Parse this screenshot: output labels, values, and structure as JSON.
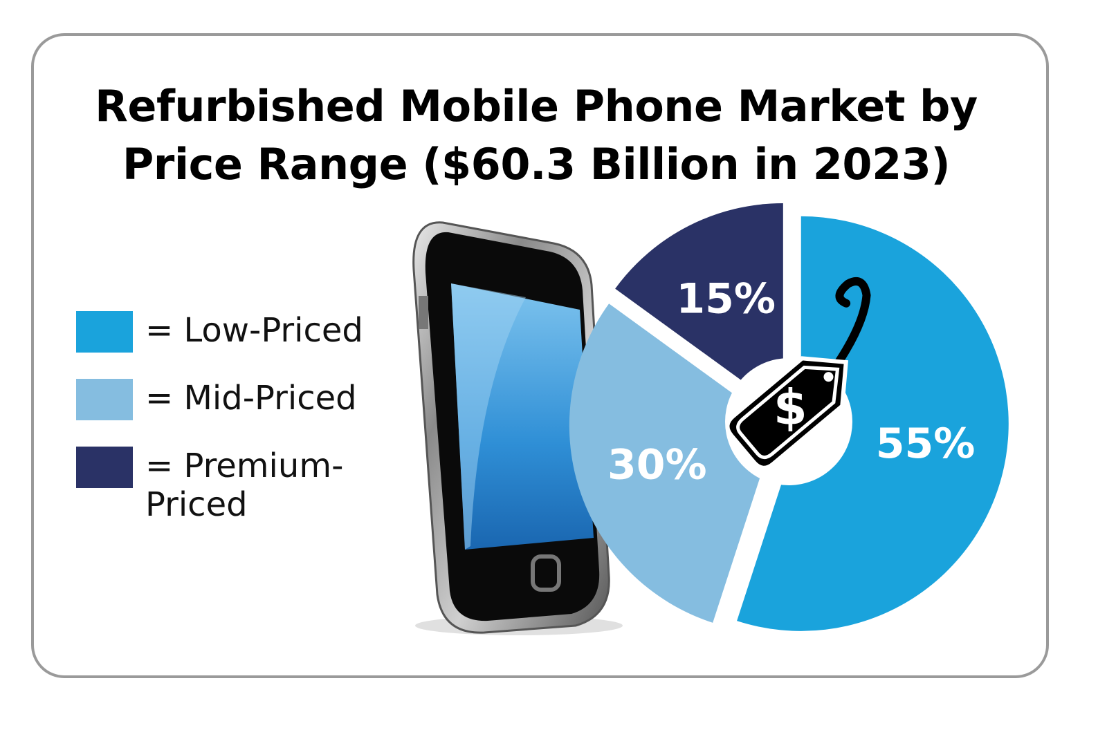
{
  "chart_data": {
    "type": "pie",
    "title": "Refurbished Mobile Phone Market by Price Range ($60.3 Billion in 2023)",
    "categories": [
      "Low-Priced",
      "Mid-Priced",
      "Premium-Priced"
    ],
    "legend_prefix": "=",
    "values": [
      55,
      30,
      15
    ],
    "value_labels": [
      "55%",
      "30%",
      "15%"
    ],
    "colors": [
      "#1aa3dc",
      "#85bde0",
      "#2a3266"
    ]
  }
}
